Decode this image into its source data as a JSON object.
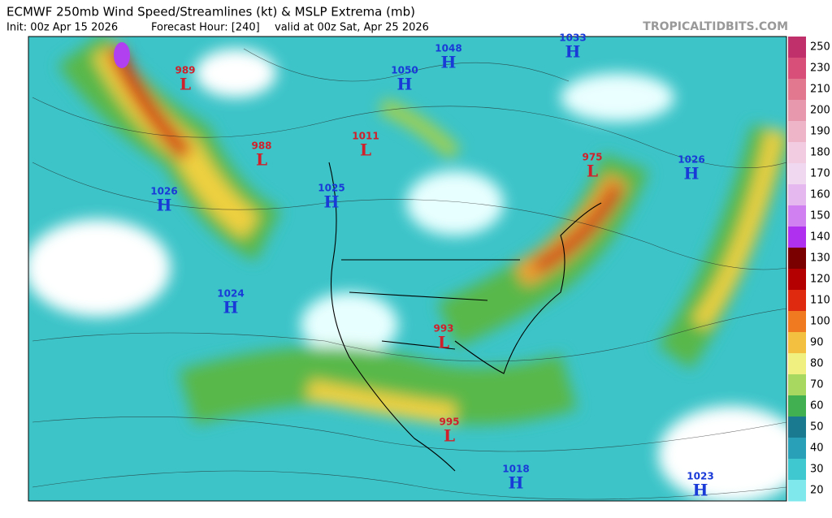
{
  "header": {
    "title": "ECMWF 250mb Wind Speed/Streamlines (kt) & MSLP Extrema (mb)",
    "init": "Init: 00z Apr 15 2026",
    "forecast_hour": "Forecast Hour: [240]",
    "valid": "valid at 00z Sat, Apr 25 2026",
    "watermark": "TROPICALTIDBITS.COM"
  },
  "centers": [
    {
      "letter": "L",
      "value": "989"
    },
    {
      "letter": "L",
      "value": "988"
    },
    {
      "letter": "L",
      "value": "1011"
    },
    {
      "letter": "L",
      "value": "975"
    },
    {
      "letter": "L",
      "value": "993"
    },
    {
      "letter": "L",
      "value": "995"
    },
    {
      "letter": "H",
      "value": "1026"
    },
    {
      "letter": "H",
      "value": "1025"
    },
    {
      "letter": "H",
      "value": "1024"
    },
    {
      "letter": "H",
      "value": "1050"
    },
    {
      "letter": "H",
      "value": "1048"
    },
    {
      "letter": "H",
      "value": "1033"
    },
    {
      "letter": "H",
      "value": "1026"
    },
    {
      "letter": "H",
      "value": "1018"
    },
    {
      "letter": "H",
      "value": "1023"
    }
  ],
  "colorbar": {
    "labels": [
      "250",
      "230",
      "210",
      "200",
      "190",
      "180",
      "170",
      "160",
      "150",
      "140",
      "130",
      "120",
      "110",
      "100",
      "90",
      "80",
      "70",
      "60",
      "50",
      "40",
      "30",
      "20"
    ],
    "colors": [
      "#c0306a",
      "#d8507a",
      "#e27890",
      "#e898ac",
      "#eeb4c8",
      "#f2cce0",
      "#f0d8f0",
      "#e6b8f0",
      "#d080f0",
      "#b030f0",
      "#7a0000",
      "#b40000",
      "#e02a10",
      "#f07a20",
      "#f4c040",
      "#f0f080",
      "#a8d860",
      "#40b050",
      "#1a7a90",
      "#2aa0b8",
      "#40c8d0",
      "#7ee8ec"
    ]
  }
}
